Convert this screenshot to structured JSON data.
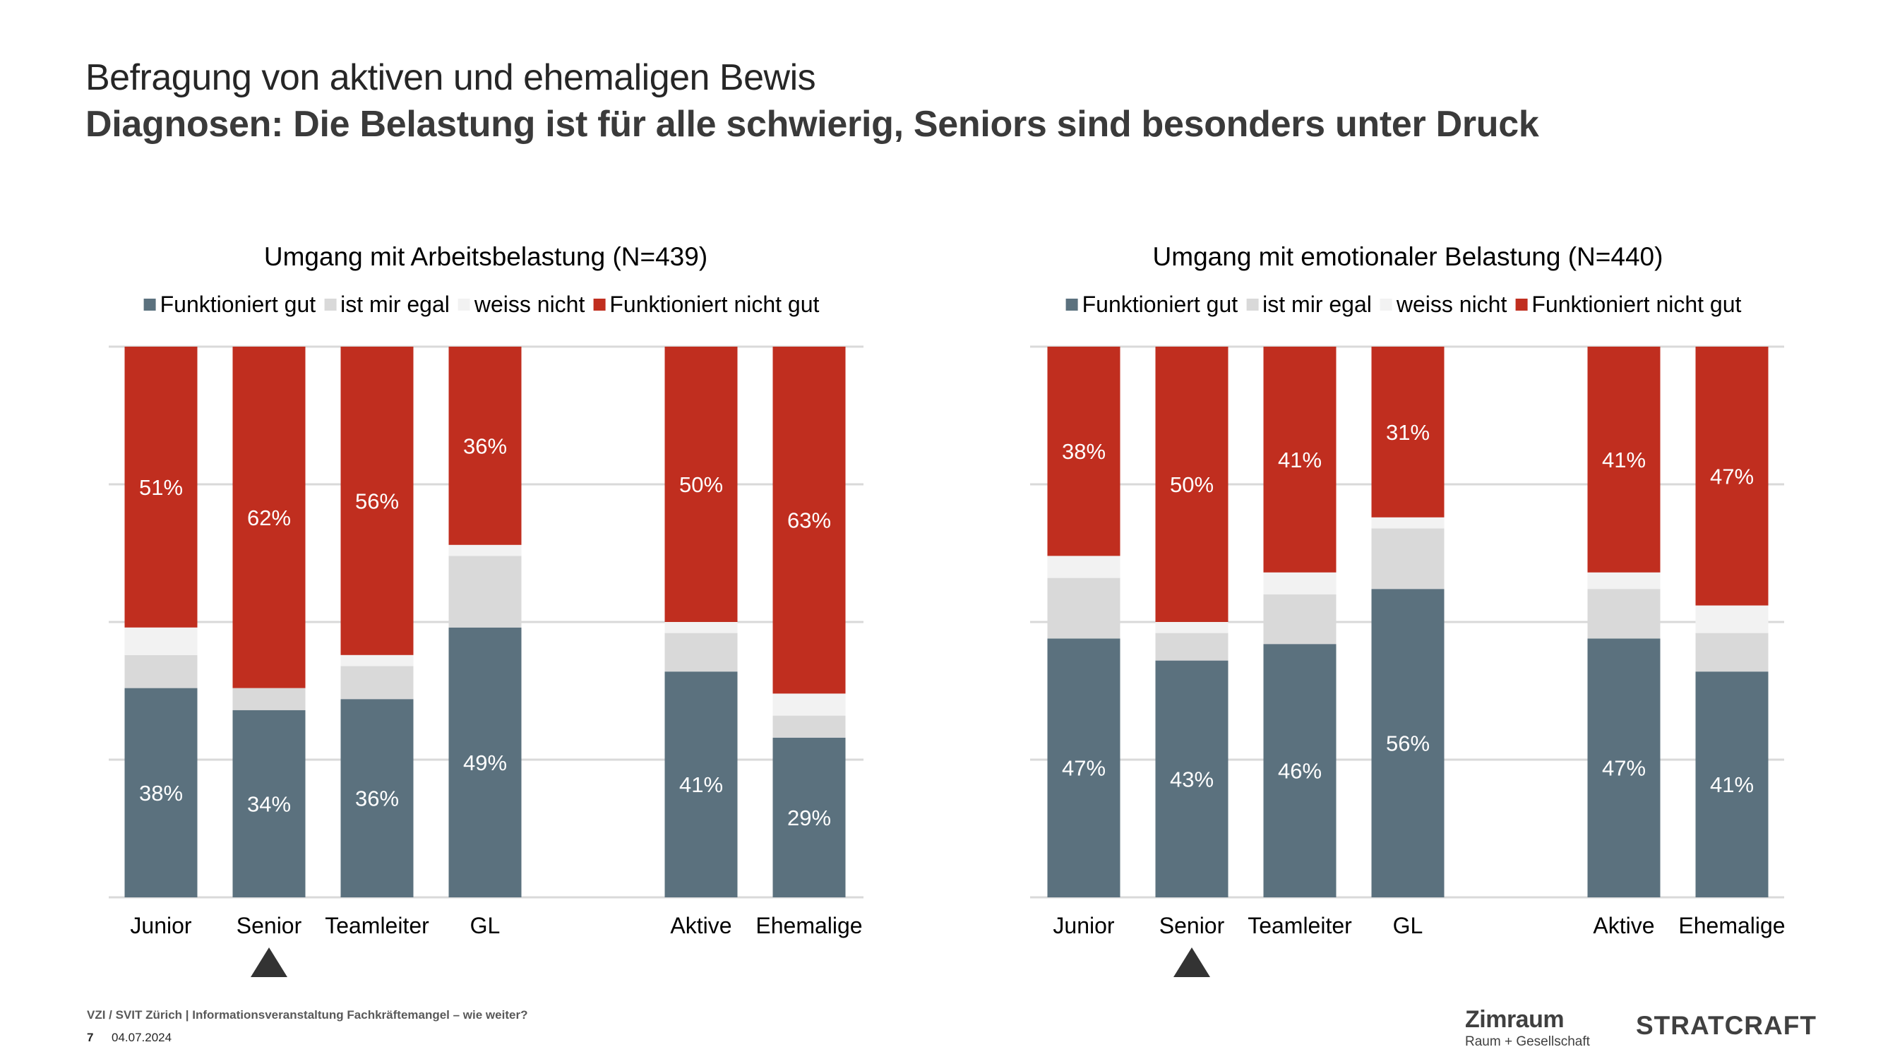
{
  "header": {
    "title": "Befragung von aktiven und ehemaligen Bewis",
    "subtitle": "Diagnosen: Die Belastung ist für alle schwierig, Seniors sind besonders unter Druck"
  },
  "colors": {
    "funktioniert_gut": "#5b717e",
    "ist_mir_egal": "#d9d9d9",
    "weiss_nicht": "#f2f2f2",
    "funktioniert_nicht_gut": "#c02e1f",
    "gridline": "#d9d9d9",
    "marker": "#333333"
  },
  "legend": [
    "Funktioniert gut",
    "ist mir egal",
    "weiss nicht",
    "Funktioniert nicht gut"
  ],
  "chart_data": [
    {
      "type": "bar",
      "stacked": true,
      "percent": true,
      "title": "Umgang mit Arbeitsbelastung (N=439)",
      "categories": [
        "Junior",
        "Senior",
        "Teamleiter",
        "GL",
        "",
        "Aktive",
        "Ehemalige"
      ],
      "ylim": [
        0,
        100
      ],
      "grid": true,
      "legend_position": "top",
      "highlight_category": "Senior",
      "series": [
        {
          "name": "Funktioniert gut",
          "values": [
            38,
            34,
            36,
            49,
            null,
            41,
            29
          ],
          "labels": [
            "38%",
            "34%",
            "36%",
            "49%",
            "",
            "41%",
            "29%"
          ]
        },
        {
          "name": "ist mir egal",
          "values": [
            6,
            4,
            6,
            13,
            null,
            7,
            4
          ],
          "labels": []
        },
        {
          "name": "weiss nicht",
          "values": [
            5,
            0,
            2,
            2,
            null,
            2,
            4
          ],
          "labels": []
        },
        {
          "name": "Funktioniert nicht gut",
          "values": [
            51,
            62,
            56,
            36,
            null,
            50,
            63
          ],
          "labels": [
            "51%",
            "62%",
            "56%",
            "36%",
            "",
            "50%",
            "63%"
          ]
        }
      ]
    },
    {
      "type": "bar",
      "stacked": true,
      "percent": true,
      "title": "Umgang mit emotionaler Belastung (N=440)",
      "categories": [
        "Junior",
        "Senior",
        "Teamleiter",
        "GL",
        "",
        "Aktive",
        "Ehemalige"
      ],
      "ylim": [
        0,
        100
      ],
      "grid": true,
      "legend_position": "top",
      "highlight_category": "Senior",
      "series": [
        {
          "name": "Funktioniert gut",
          "values": [
            47,
            43,
            46,
            56,
            null,
            47,
            41
          ],
          "labels": [
            "47%",
            "43%",
            "46%",
            "56%",
            "",
            "47%",
            "41%"
          ]
        },
        {
          "name": "ist mir egal",
          "values": [
            11,
            5,
            9,
            11,
            null,
            9,
            7
          ],
          "labels": []
        },
        {
          "name": "weiss nicht",
          "values": [
            4,
            2,
            4,
            2,
            null,
            3,
            5
          ],
          "labels": []
        },
        {
          "name": "Funktioniert nicht gut",
          "values": [
            38,
            50,
            41,
            31,
            null,
            41,
            47
          ],
          "labels": [
            "38%",
            "50%",
            "41%",
            "31%",
            "",
            "41%",
            "47%"
          ]
        }
      ]
    }
  ],
  "footer": {
    "event": "VZI / SVIT Zürich | Informationsveranstaltung Fachkräftemangel  – wie weiter?",
    "page": "7",
    "date": "04.07.2024"
  },
  "logos": {
    "zimraum": "Zimraum",
    "zimraum_sub": "Raum + Gesellschaft",
    "stratcraft": "STRATCRAFT"
  }
}
